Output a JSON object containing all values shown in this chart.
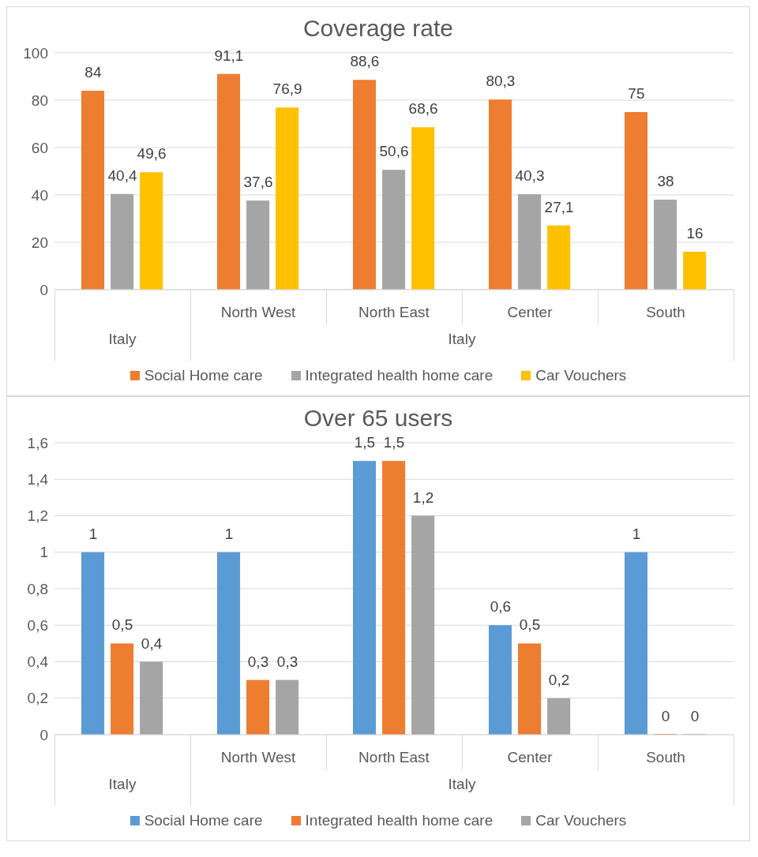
{
  "chart_data": [
    {
      "type": "bar",
      "title": "Coverage rate",
      "categories": [
        null,
        "North West",
        "North East",
        "Center",
        "South"
      ],
      "annotations": [
        "Italy",
        "Italy"
      ],
      "series": [
        {
          "name": "Social Home care",
          "color": "#ed7d31",
          "values": [
            84,
            91.1,
            88.6,
            80.3,
            75
          ],
          "value_labels": [
            "84",
            "91,1",
            "88,6",
            "80,3",
            "75"
          ]
        },
        {
          "name": "Integrated health home care",
          "color": "#a5a5a5",
          "values": [
            40.4,
            37.6,
            50.6,
            40.3,
            38
          ],
          "value_labels": [
            "40,4",
            "37,6",
            "50,6",
            "40,3",
            "38"
          ]
        },
        {
          "name": "Car Vouchers",
          "color": "#ffc000",
          "values": [
            49.6,
            76.9,
            68.6,
            27.1,
            16
          ],
          "value_labels": [
            "49,6",
            "76,9",
            "68,6",
            "27,1",
            "16"
          ]
        }
      ],
      "ylim": [
        0,
        100
      ],
      "yticks": [
        0,
        20,
        40,
        60,
        80,
        100
      ],
      "grid": "y",
      "legend": "bottom"
    },
    {
      "type": "bar",
      "title": "Over 65 users",
      "categories": [
        null,
        "North West",
        "North East",
        "Center",
        "South"
      ],
      "annotations": [
        "Italy",
        "Italy"
      ],
      "series": [
        {
          "name": "Social Home care",
          "color": "#5b9bd5",
          "values": [
            1,
            1,
            1.5,
            0.6,
            1
          ],
          "value_labels": [
            "1",
            "1",
            "1,5",
            "0,6",
            "1"
          ]
        },
        {
          "name": "Integrated health home care",
          "color": "#ed7d31",
          "values": [
            0.5,
            0.3,
            1.5,
            0.5,
            0
          ],
          "value_labels": [
            "0,5",
            "0,3",
            "1,5",
            "0,5",
            "0"
          ]
        },
        {
          "name": "Car Vouchers",
          "color": "#a5a5a5",
          "values": [
            0.4,
            0.3,
            1.2,
            0.2,
            0
          ],
          "value_labels": [
            "0,4",
            "0,3",
            "1,2",
            "0,2",
            "0"
          ]
        }
      ],
      "ylim": [
        0,
        1.6
      ],
      "yticks": [
        0,
        {
          "value": 0.2,
          "label": "0,2"
        },
        {
          "value": 0.4,
          "label": "0,4"
        },
        {
          "value": 0.6,
          "label": "0,6"
        },
        {
          "value": 0.8,
          "label": "0,8"
        },
        1,
        {
          "value": 1.2,
          "label": "1,2"
        },
        {
          "value": 1.4,
          "label": "1,4"
        },
        {
          "value": 1.6,
          "label": "1,6"
        }
      ],
      "grid": "y",
      "legend": "bottom"
    }
  ]
}
